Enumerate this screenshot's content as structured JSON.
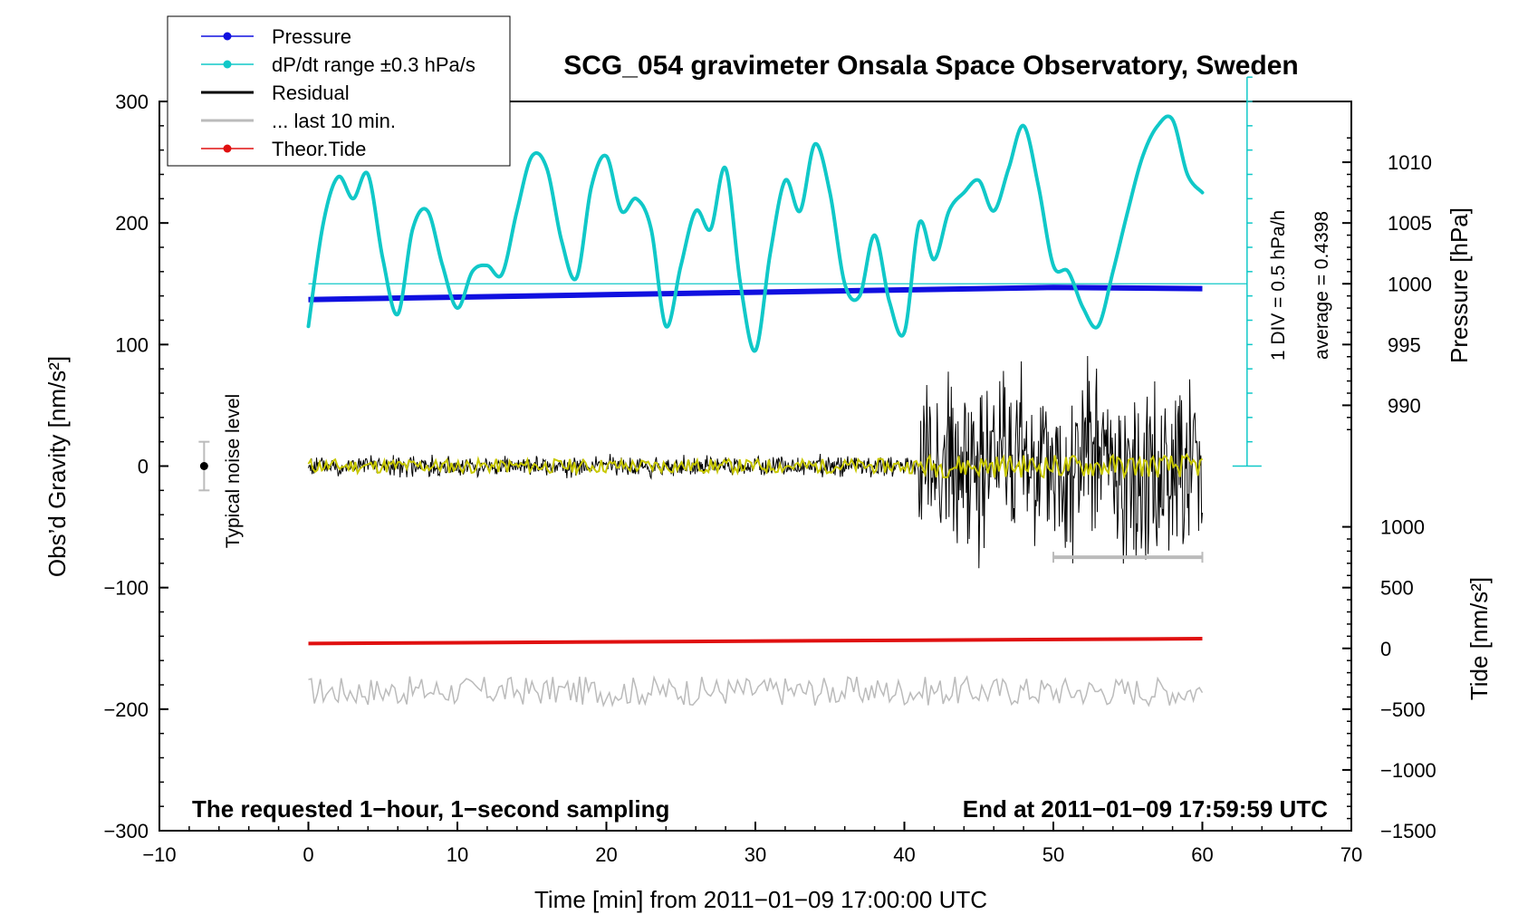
{
  "chart_data": {
    "type": "line",
    "title": "SCG_054 gravimeter Onsala Space Observatory, Sweden",
    "xlabel": "Time [min] from 2011−01−09 17:00:00 UTC",
    "ylabel_left": "Obs’d Gravity [nm/s²]",
    "ylabel_right_pressure": "Pressure [hPa]",
    "ylabel_right_tide": "Tide [nm/s²]",
    "xlim": [
      -10,
      70
    ],
    "ylim": [
      -300,
      300
    ],
    "x_ticks": [
      -10,
      0,
      10,
      20,
      30,
      40,
      50,
      60,
      70
    ],
    "x_tick_labels": [
      "−10",
      "0",
      "10",
      "20",
      "30",
      "40",
      "50",
      "60",
      "70"
    ],
    "y_ticks": [
      -300,
      -200,
      -100,
      0,
      100,
      200,
      300
    ],
    "y_tick_labels": [
      "−300",
      "−200",
      "−100",
      "0",
      "100",
      "200",
      "300"
    ],
    "pressure_ticks": [
      990,
      995,
      1000,
      1005,
      1010
    ],
    "pressure_tick_labels": [
      "990",
      "995",
      "1000",
      "1005",
      "1010"
    ],
    "pressure_axis": {
      "at_grav_1000": 150,
      "grav_per_hPa": 10
    },
    "tide_ticks": [
      -1500,
      -1000,
      -500,
      0,
      500,
      1000
    ],
    "tide_tick_labels": [
      "−1500",
      "−1000",
      "−500",
      "0",
      "500",
      "1000"
    ],
    "tide_axis": {
      "at_grav_0": -150,
      "grav_per_unit": 0.1
    },
    "dpdt_axis": {
      "base_grav": 0,
      "div_grav": 20,
      "count": 16
    },
    "annotation_left_text": "The requested 1−hour, 1−second sampling",
    "annotation_right_text": "End at 2011−01−09 17:59:59 UTC",
    "dpdt_scale_label": "1 DIV = 0.5 hPa/h",
    "dpdt_average_label": "average = 0.4398",
    "noise_label": "Typical noise level",
    "noise_bar": {
      "x": -7,
      "y": 0,
      "half_range": 20
    },
    "legend": [
      {
        "label": "Pressure",
        "color": "#1010e0",
        "style": "line-dot"
      },
      {
        "label": "dP/dt range ±0.3 hPa/s",
        "color": "#10c8c8",
        "style": "line-dot"
      },
      {
        "label": "Residual",
        "color": "#000000",
        "style": "line"
      },
      {
        "label": "... last 10 min.",
        "color": "#bbbbbb",
        "style": "line"
      },
      {
        "label": "Theor.Tide",
        "color": "#e01010",
        "style": "line-dot"
      }
    ],
    "series": [
      {
        "name": "Pressure",
        "color": "#1010e0",
        "axis": "pressure",
        "x": [
          0,
          10,
          20,
          30,
          40,
          50,
          60
        ],
        "values": [
          998.7,
          998.9,
          999.1,
          999.3,
          999.5,
          999.7,
          999.6
        ]
      },
      {
        "name": "dP/dt",
        "color": "#10c8c8",
        "axis": "left",
        "x": [
          0,
          1,
          2,
          3,
          4,
          5,
          6,
          7,
          8,
          9,
          10,
          11,
          12,
          13,
          14,
          15,
          16,
          17,
          18,
          19,
          20,
          21,
          22,
          23,
          24,
          25,
          26,
          27,
          28,
          29,
          30,
          31,
          32,
          33,
          34,
          35,
          36,
          37,
          38,
          39,
          40,
          41,
          42,
          43,
          44,
          45,
          46,
          47,
          48,
          49,
          50,
          51,
          52,
          53,
          54,
          55,
          56,
          57,
          58,
          59,
          60
        ],
        "values": [
          115,
          200,
          238,
          220,
          240,
          170,
          125,
          195,
          210,
          165,
          130,
          160,
          165,
          158,
          210,
          255,
          245,
          185,
          155,
          230,
          255,
          210,
          220,
          195,
          115,
          165,
          210,
          195,
          245,
          150,
          95,
          175,
          235,
          210,
          265,
          225,
          150,
          140,
          190,
          135,
          110,
          200,
          170,
          210,
          225,
          235,
          210,
          245,
          280,
          230,
          165,
          160,
          130,
          115,
          160,
          210,
          255,
          280,
          285,
          240,
          225
        ]
      },
      {
        "name": "Residual",
        "color": "#000000",
        "axis": "left",
        "x_range": [
          0,
          60
        ],
        "amplitude_phases": [
          [
            0,
            41,
            8
          ],
          [
            41,
            60,
            75
          ]
        ]
      },
      {
        "name": "Residual (smoothed)",
        "color": "#c8c800",
        "axis": "left",
        "x_range": [
          0,
          60
        ],
        "amplitude": 6
      },
      {
        "name": "Residual last 10 min",
        "color": "#bbbbbb",
        "axis": "left",
        "x": [
          50,
          60
        ],
        "values": [
          -75,
          -75
        ]
      },
      {
        "name": "Theor.Tide",
        "color": "#e01010",
        "axis": "tide",
        "x": [
          0,
          60
        ],
        "values": [
          40,
          80
        ]
      },
      {
        "name": "Noise trace",
        "color": "#bbbbbb",
        "axis": "left",
        "x_range": [
          0,
          60
        ],
        "center": -185,
        "amplitude": 12
      }
    ]
  }
}
